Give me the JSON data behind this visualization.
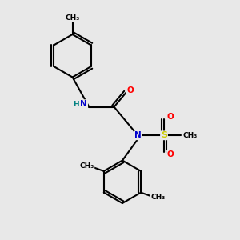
{
  "background_color": "#e8e8e8",
  "atom_colors": {
    "C": "#000000",
    "N": "#0000cd",
    "O": "#ff0000",
    "S": "#cccc00",
    "H": "#008080"
  },
  "bond_color": "#000000",
  "bond_width": 1.5,
  "figsize": [
    3.0,
    3.0
  ],
  "dpi": 100,
  "xlim": [
    0,
    10
  ],
  "ylim": [
    0,
    10
  ]
}
